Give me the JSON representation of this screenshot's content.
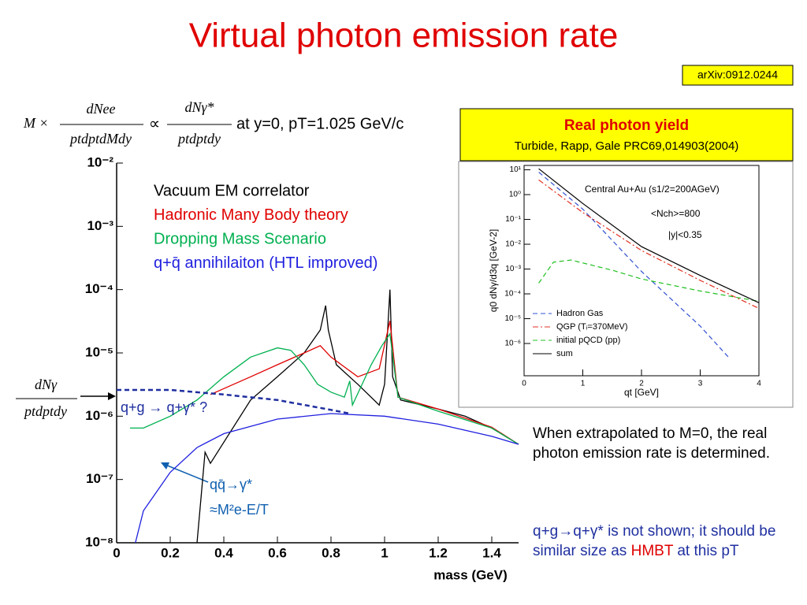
{
  "title": "Virtual photon emission rate",
  "reference": "arXiv:0912.0244",
  "formula": {
    "prefix": "M ×",
    "num1": "dNee",
    "den1": "ptdptdMdy",
    "prop": "∝",
    "num2": "dNγ*",
    "den2": "ptdptdy",
    "suffix": "at y=0, pT=1.025 GeV/c"
  },
  "left_label": {
    "num": "dNγ",
    "den": "ptdptdy"
  },
  "inset_box": {
    "title": "Real photon yield",
    "citation": "Turbide, Rapp, Gale PRC69,014903(2004)"
  },
  "notes": {
    "extrapolation": "When extrapolated to M=0, the real photon emission rate is determined.",
    "qg_parts": [
      "q+g→q+γ* is not shown; it should be similar size as",
      "HMBT",
      "at this pT"
    ]
  },
  "chart_data": [
    {
      "type": "line",
      "xlabel": "mass (GeV)",
      "log_y": true,
      "xlim": [
        0,
        1.5
      ],
      "xticks": [
        0,
        0.2,
        0.4,
        0.6,
        0.8,
        1,
        1.2,
        1.4
      ],
      "ylim": [
        1e-08,
        0.01
      ],
      "yticks": [
        {
          "value": 0.01,
          "label": "10⁻²"
        },
        {
          "value": 0.001,
          "label": "10⁻³"
        },
        {
          "value": 0.0001,
          "label": "10⁻⁴"
        },
        {
          "value": 1e-05,
          "label": "10⁻⁵"
        },
        {
          "value": 1e-06,
          "label": "10⁻⁶"
        },
        {
          "value": 1e-07,
          "label": "10⁻⁷"
        },
        {
          "value": 1e-08,
          "label": "10⁻⁸"
        }
      ],
      "series": [
        {
          "name": "Vacuum EM correlator",
          "color": "#000000",
          "style": "solid",
          "x": [
            0.3,
            0.33,
            0.35,
            0.5,
            0.6,
            0.7,
            0.76,
            0.78,
            0.79,
            0.82,
            0.9,
            0.98,
            1.0,
            1.02,
            1.03,
            1.06,
            1.2,
            1.3,
            1.4,
            1.5
          ],
          "values": [
            1e-08,
            2.7e-07,
            1.8e-07,
            1.8e-06,
            4.2e-06,
            1e-05,
            2.3e-05,
            5.6e-05,
            2.3e-05,
            6.5e-06,
            3.2e-06,
            1.5e-06,
            3.2e-06,
            0.0001,
            4.2e-06,
            1.8e-06,
            1.3e-06,
            1e-06,
            6.5e-07,
            3.6e-07
          ]
        },
        {
          "name": "Hadronic Many Body theory",
          "color": "#e00000",
          "style": "solid",
          "x": [
            0.35,
            0.5,
            0.6,
            0.7,
            0.76,
            0.8,
            0.9,
            0.98,
            1.02,
            1.05,
            1.2,
            1.4,
            1.5
          ],
          "values": [
            2.2e-06,
            4.2e-06,
            6.5e-06,
            1e-05,
            1.3e-05,
            8.6e-06,
            4.2e-06,
            5.6e-06,
            3.2e-05,
            2e-06,
            1.3e-06,
            6.7e-07,
            3.6e-07
          ]
        },
        {
          "name": "Dropping Mass Scenario",
          "color": "#00b050",
          "style": "solid",
          "x": [
            0.05,
            0.1,
            0.2,
            0.3,
            0.4,
            0.5,
            0.6,
            0.65,
            0.7,
            0.75,
            0.8,
            0.85,
            0.87,
            0.88,
            0.95,
            0.99,
            1.02,
            1.05,
            1.2,
            1.4,
            1.5
          ],
          "values": [
            6.5e-07,
            6.5e-07,
            1e-06,
            1.8e-06,
            4.2e-06,
            8.6e-06,
            1.2e-05,
            1.1e-05,
            6.5e-06,
            3.2e-06,
            2.4e-06,
            2e-06,
            3.6e-06,
            1.5e-06,
            6.5e-06,
            1.3e-05,
            2e-05,
            2e-06,
            1.2e-06,
            6.5e-07,
            3.6e-07
          ]
        },
        {
          "name": "q+q̄ annihilaiton (HTL improved)",
          "color": "#1f1fdf",
          "style": "solid",
          "x": [
            0.07,
            0.1,
            0.2,
            0.3,
            0.4,
            0.6,
            0.8,
            1.0,
            1.2,
            1.4,
            1.5
          ],
          "values": [
            1e-08,
            3.2e-08,
            1.3e-07,
            3.2e-07,
            5.3e-07,
            9e-07,
            1.1e-06,
            1e-06,
            7.5e-07,
            4.8e-07,
            3.6e-07
          ]
        },
        {
          "color": "#1f2f9f",
          "style": "dashed",
          "x": [
            0,
            0.2,
            0.4,
            0.6,
            0.8,
            0.87
          ],
          "values": [
            2.6e-06,
            2.6e-06,
            2.2e-06,
            1.8e-06,
            1.26e-06,
            1.1e-06
          ]
        }
      ],
      "annotations": [
        "q+g → q+γ* ?",
        "qq̄→γ*",
        "≈M²e-E/T"
      ]
    },
    {
      "type": "line",
      "xlabel": "qt [GeV]",
      "ylabel": "q0 dNγ/d3q  [GeV-2]",
      "log_y": true,
      "xlim": [
        0,
        4
      ],
      "xticks": [
        0,
        1,
        2,
        3,
        4
      ],
      "ylim": [
        5e-08,
        15
      ],
      "yticks": [
        {
          "value": 10,
          "label": "10¹"
        },
        {
          "value": 1,
          "label": "10⁰"
        },
        {
          "value": 0.1,
          "label": "10⁻¹"
        },
        {
          "value": 0.01,
          "label": "10⁻²"
        },
        {
          "value": 0.001,
          "label": "10⁻³"
        },
        {
          "value": 0.0001,
          "label": "10⁻⁴"
        },
        {
          "value": 1e-05,
          "label": "10⁻⁵"
        },
        {
          "value": 1e-06,
          "label": "10⁻⁶"
        }
      ],
      "series": [
        {
          "name": "Hadron Gas",
          "color": "#3050d0",
          "style": "dashed",
          "x": [
            0.25,
            1,
            2,
            3,
            3.5
          ],
          "values": [
            8,
            0.26,
            0.0008,
            5e-06,
            2.5e-07
          ]
        },
        {
          "name": "QGP (Tᵢ=370MeV)",
          "color": "#e03020",
          "style": "dashdot",
          "x": [
            0.25,
            1,
            2,
            3,
            4
          ],
          "values": [
            3.9,
            0.19,
            0.0056,
            0.00035,
            2.6e-05
          ]
        },
        {
          "name": "initial pQCD (pp)",
          "color": "#20c020",
          "style": "dashed",
          "x": [
            0.25,
            0.5,
            0.8,
            1.5,
            2,
            3,
            4
          ],
          "values": [
            0.00027,
            0.0019,
            0.0023,
            0.0009,
            0.0004,
            0.00013,
            5e-05
          ]
        },
        {
          "name": "sum",
          "color": "#000000",
          "style": "solid",
          "x": [
            0.25,
            1,
            2,
            3,
            4
          ],
          "values": [
            11,
            0.44,
            0.008,
            0.00055,
            4.4e-05
          ]
        }
      ],
      "annotations": [
        "Central Au+Au (s1/2=200AGeV)",
        "<Nch>=800",
        "|y|<0.35"
      ]
    }
  ]
}
